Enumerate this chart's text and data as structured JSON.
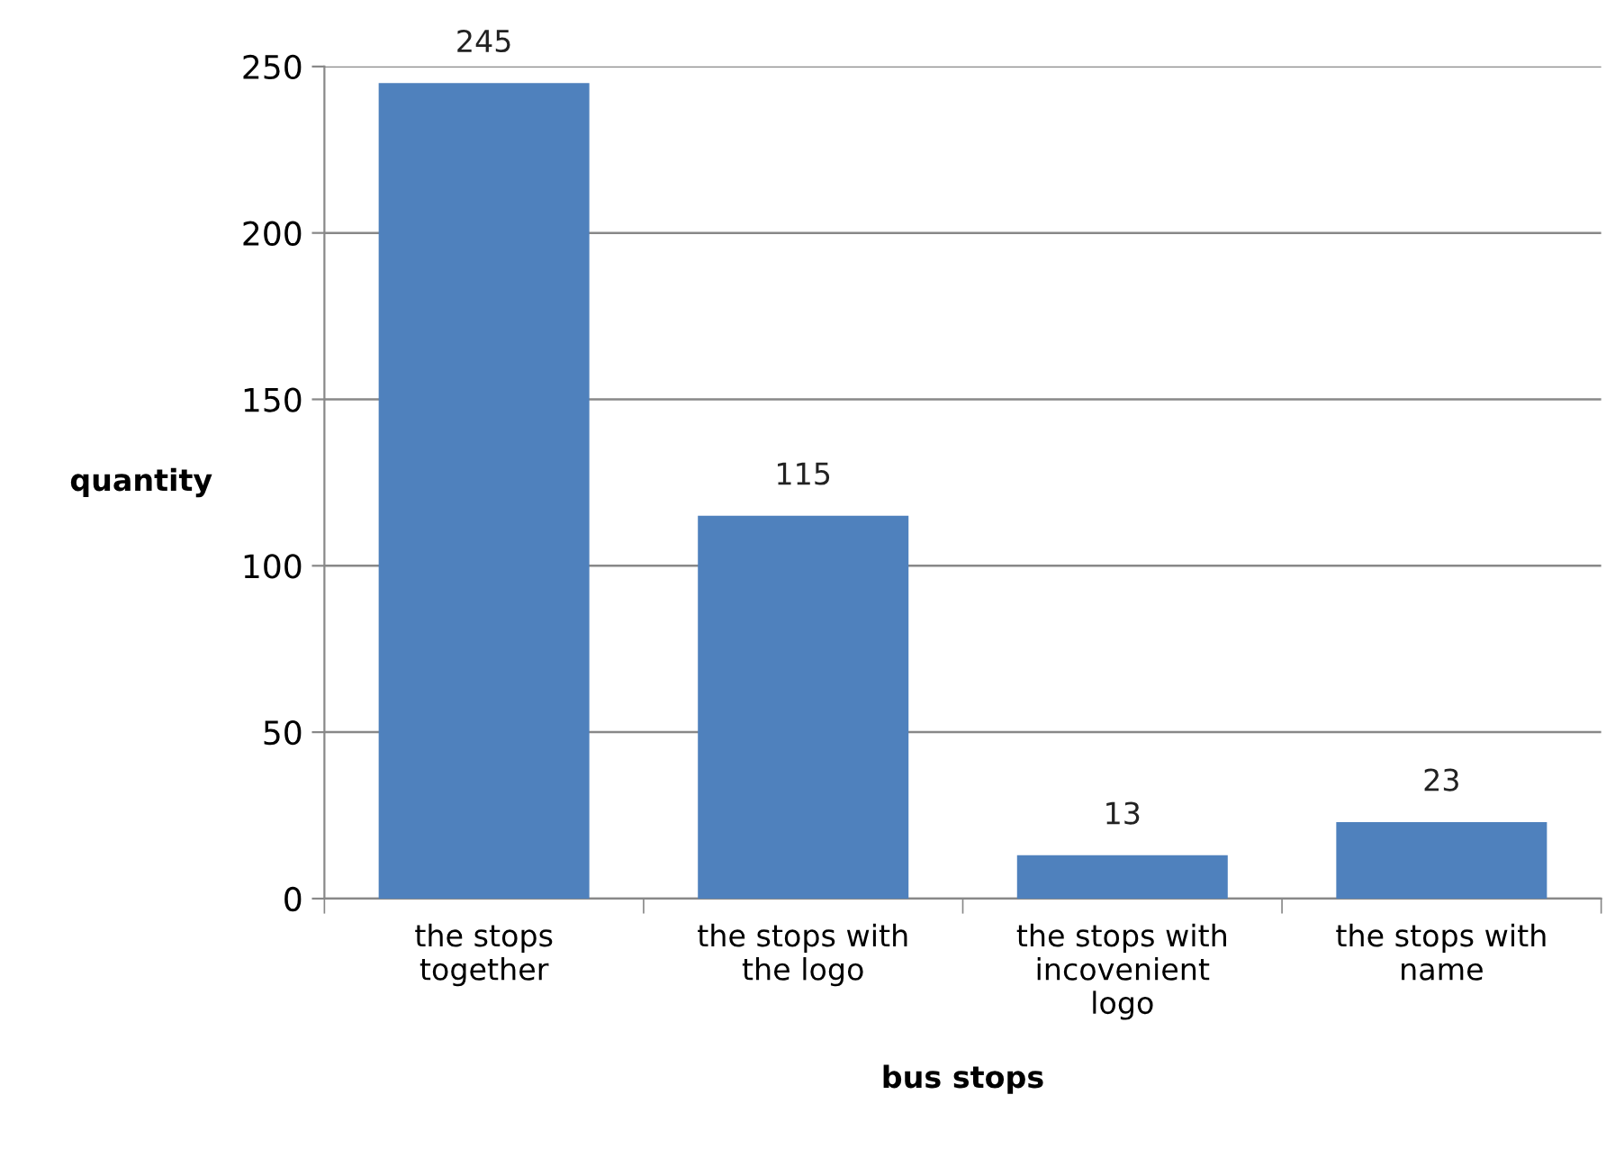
{
  "chart_data": {
    "type": "bar",
    "categories": [
      "the stops\ntogether",
      "the stops with\nthe logo",
      "the stops with\nincovenient\nlogo",
      "the stops with\nname"
    ],
    "values": [
      245,
      115,
      13,
      23
    ],
    "color": "#4f81bd",
    "xlabel": "bus stops",
    "ylabel": "quantity",
    "ylim": [
      0,
      250
    ],
    "yticks": [
      0,
      50,
      100,
      150,
      200,
      250
    ],
    "grid": "y",
    "data_labels": true
  }
}
